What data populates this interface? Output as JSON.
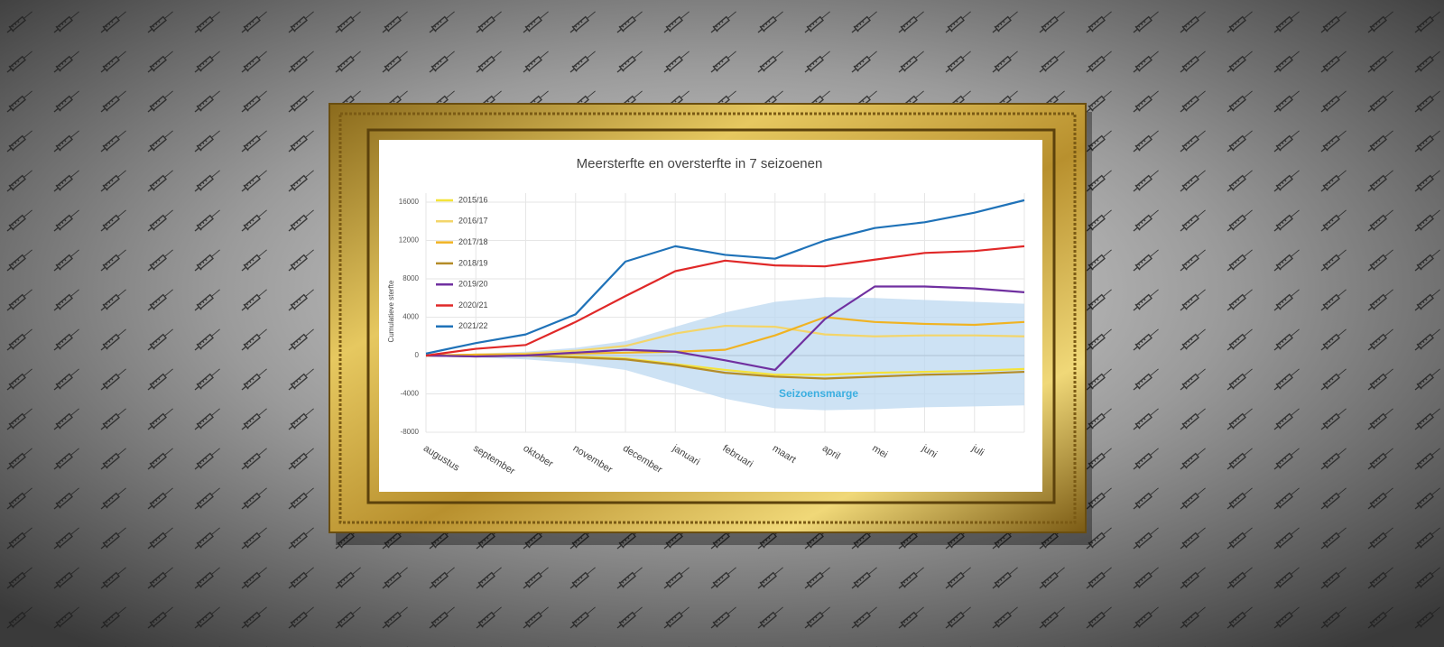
{
  "chart_data": {
    "type": "line",
    "title": "Meersterfte en oversterfte in 7 seizoenen",
    "y_label": "Cumulatieve sterfte",
    "categories": [
      "augustus",
      "september",
      "oktober",
      "november",
      "december",
      "januari",
      "februari",
      "maart",
      "april",
      "mei",
      "juni",
      "juli",
      null
    ],
    "ylim": [
      -8000,
      16000
    ],
    "yticks": [
      -8000,
      -4000,
      0,
      4000,
      8000,
      12000,
      16000
    ],
    "grid": true,
    "legend": "upper left",
    "band": {
      "label": "Seizoensmarge",
      "color": "#bcd8f0",
      "upper": [
        0,
        200,
        400,
        800,
        1500,
        3000,
        4500,
        5600,
        6100,
        6000,
        5800,
        5600,
        5400
      ],
      "lower": [
        0,
        -200,
        -400,
        -800,
        -1500,
        -3000,
        -4500,
        -5500,
        -5700,
        -5600,
        -5400,
        -5300,
        -5200
      ]
    },
    "series": [
      {
        "name": "2015/16",
        "color": "#f4e33a",
        "values": [
          0,
          0,
          0,
          -100,
          -300,
          -900,
          -1500,
          -2000,
          -2000,
          -1800,
          -1700,
          -1600,
          -1400
        ]
      },
      {
        "name": "2016/17",
        "color": "#f3d56a",
        "values": [
          0,
          100,
          200,
          500,
          1000,
          2300,
          3100,
          3000,
          2200,
          2000,
          2100,
          2100,
          2000
        ]
      },
      {
        "name": "2017/18",
        "color": "#f0b323",
        "values": [
          0,
          100,
          100,
          200,
          300,
          400,
          600,
          2100,
          4000,
          3500,
          3300,
          3200,
          3500
        ]
      },
      {
        "name": "2018/19",
        "color": "#b48c28",
        "values": [
          0,
          -100,
          0,
          -200,
          -400,
          -1000,
          -1800,
          -2200,
          -2400,
          -2200,
          -2000,
          -1900,
          -1700
        ]
      },
      {
        "name": "2019/20",
        "color": "#7030a0",
        "values": [
          0,
          -100,
          0,
          300,
          600,
          400,
          -500,
          -1500,
          3800,
          7200,
          7200,
          7000,
          6600
        ]
      },
      {
        "name": "2020/21",
        "color": "#e02828",
        "values": [
          0,
          700,
          1100,
          3500,
          6200,
          8800,
          9900,
          9400,
          9300,
          10000,
          10700,
          10900,
          11400
        ]
      },
      {
        "name": "2021/22",
        "color": "#1f72b8",
        "values": [
          200,
          1300,
          2200,
          4300,
          9800,
          11400,
          10500,
          10100,
          12000,
          13300,
          13900,
          14900,
          16200
        ]
      }
    ]
  }
}
